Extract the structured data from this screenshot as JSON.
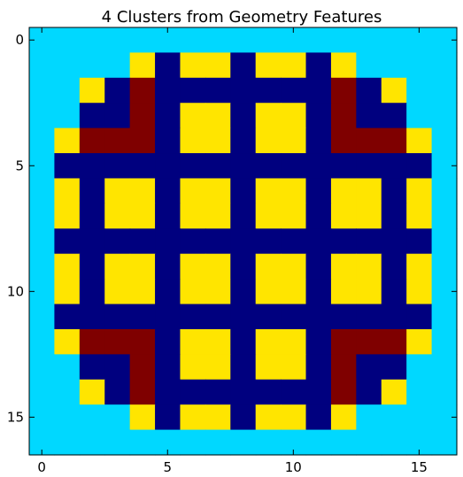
{
  "chart_data": {
    "type": "heatmap",
    "title": "4 Clusters from Geometry Features",
    "xlabel": "",
    "ylabel": "",
    "xlim": [
      -0.5,
      16.5
    ],
    "ylim": [
      16.5,
      -0.5
    ],
    "x_ticks": [
      0,
      5,
      10,
      15
    ],
    "y_ticks": [
      0,
      5,
      10,
      15
    ],
    "grid": false,
    "colormap": [
      "#00d8ff",
      "#00007f",
      "#ffe500",
      "#7f0000"
    ],
    "cluster_ids": [
      0,
      1,
      2,
      3
    ],
    "cells": [
      [
        0,
        0,
        0,
        0,
        0,
        0,
        0,
        0,
        0,
        0,
        0,
        0,
        0,
        0,
        0,
        0,
        0
      ],
      [
        0,
        0,
        0,
        0,
        2,
        1,
        2,
        2,
        1,
        2,
        2,
        1,
        2,
        0,
        0,
        0,
        0
      ],
      [
        0,
        0,
        2,
        1,
        3,
        1,
        1,
        1,
        1,
        1,
        1,
        1,
        3,
        1,
        2,
        0,
        0
      ],
      [
        0,
        0,
        1,
        1,
        3,
        1,
        2,
        2,
        1,
        2,
        2,
        1,
        3,
        1,
        1,
        0,
        0
      ],
      [
        0,
        2,
        3,
        3,
        3,
        1,
        2,
        2,
        1,
        2,
        2,
        1,
        3,
        3,
        3,
        2,
        0
      ],
      [
        0,
        1,
        1,
        1,
        1,
        1,
        1,
        1,
        1,
        1,
        1,
        1,
        1,
        1,
        1,
        1,
        0
      ],
      [
        0,
        2,
        1,
        2,
        2,
        1,
        2,
        2,
        1,
        2,
        2,
        1,
        2,
        2,
        1,
        2,
        0
      ],
      [
        0,
        2,
        1,
        2,
        2,
        1,
        2,
        2,
        1,
        2,
        2,
        1,
        2,
        2,
        1,
        2,
        0
      ],
      [
        0,
        1,
        1,
        1,
        1,
        1,
        1,
        1,
        1,
        1,
        1,
        1,
        1,
        1,
        1,
        1,
        0
      ],
      [
        0,
        2,
        1,
        2,
        2,
        1,
        2,
        2,
        1,
        2,
        2,
        1,
        2,
        2,
        1,
        2,
        0
      ],
      [
        0,
        2,
        1,
        2,
        2,
        1,
        2,
        2,
        1,
        2,
        2,
        1,
        2,
        2,
        1,
        2,
        0
      ],
      [
        0,
        1,
        1,
        1,
        1,
        1,
        1,
        1,
        1,
        1,
        1,
        1,
        1,
        1,
        1,
        1,
        0
      ],
      [
        0,
        2,
        3,
        3,
        3,
        1,
        2,
        2,
        1,
        2,
        2,
        1,
        3,
        3,
        3,
        2,
        0
      ],
      [
        0,
        0,
        1,
        1,
        3,
        1,
        2,
        2,
        1,
        2,
        2,
        1,
        3,
        1,
        1,
        0,
        0
      ],
      [
        0,
        0,
        2,
        1,
        3,
        1,
        1,
        1,
        1,
        1,
        1,
        1,
        3,
        1,
        2,
        0,
        0
      ],
      [
        0,
        0,
        0,
        0,
        2,
        1,
        2,
        2,
        1,
        2,
        2,
        1,
        2,
        0,
        0,
        0,
        0
      ],
      [
        0,
        0,
        0,
        0,
        0,
        0,
        0,
        0,
        0,
        0,
        0,
        0,
        0,
        0,
        0,
        0,
        0
      ]
    ]
  }
}
